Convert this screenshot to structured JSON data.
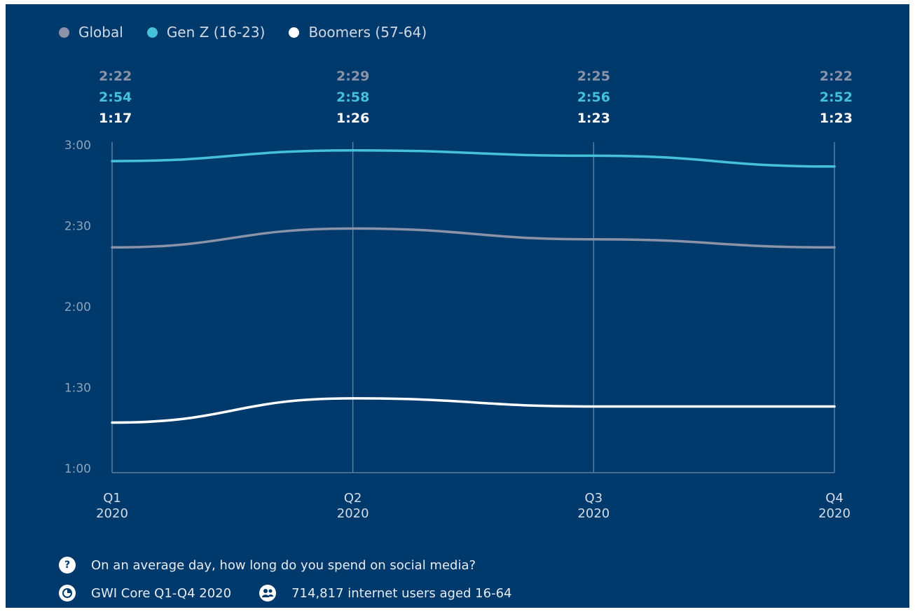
{
  "colors": {
    "background": "#003a6c",
    "global": "#8b93a8",
    "genz": "#45c2d8",
    "boomers": "#ffffff",
    "grid": "#5f7c9c"
  },
  "legend": [
    {
      "label": "Global",
      "color": "#8b93a8"
    },
    {
      "label": "Gen Z (16-23)",
      "color": "#45c2d8"
    },
    {
      "label": "Boomers (57-64)",
      "color": "#ffffff"
    }
  ],
  "chart_data": {
    "type": "line",
    "categories": [
      "Q1 2020",
      "Q2 2020",
      "Q3 2020",
      "Q4 2020"
    ],
    "x_tick_labels": [
      {
        "quarter": "Q1",
        "year": "2020"
      },
      {
        "quarter": "Q2",
        "year": "2020"
      },
      {
        "quarter": "Q3",
        "year": "2020"
      },
      {
        "quarter": "Q4",
        "year": "2020"
      }
    ],
    "y_ticks": [
      "3:00",
      "2:30",
      "2:00",
      "1:30",
      "1:00"
    ],
    "y_tick_minutes": [
      180,
      150,
      120,
      90,
      60
    ],
    "ylim": [
      60,
      180
    ],
    "y_unit": "minutes (h:mm)",
    "grid": "vertical lines at each quarter",
    "legend_position": "top-left",
    "series": [
      {
        "name": "Global",
        "values": [
          142,
          149,
          145,
          142
        ],
        "labels": [
          "2:22",
          "2:29",
          "2:25",
          "2:22"
        ],
        "color": "#8b93a8"
      },
      {
        "name": "Gen Z (16-23)",
        "values": [
          174,
          178,
          176,
          172
        ],
        "labels": [
          "2:54",
          "2:58",
          "2:56",
          "2:52"
        ],
        "color": "#45c2d8"
      },
      {
        "name": "Boomers (57-64)",
        "values": [
          77,
          86,
          83,
          83
        ],
        "labels": [
          "1:17",
          "1:26",
          "1:23",
          "1:23"
        ],
        "color": "#ffffff"
      }
    ]
  },
  "footer": {
    "question_icon": "question-icon",
    "question": "On an average day, how long do you spend on social media?",
    "source_icon": "pie-chart-icon",
    "source": "GWI Core Q1-Q4 2020",
    "sample_icon": "users-icon",
    "sample": "714,817 internet users aged 16-64"
  }
}
